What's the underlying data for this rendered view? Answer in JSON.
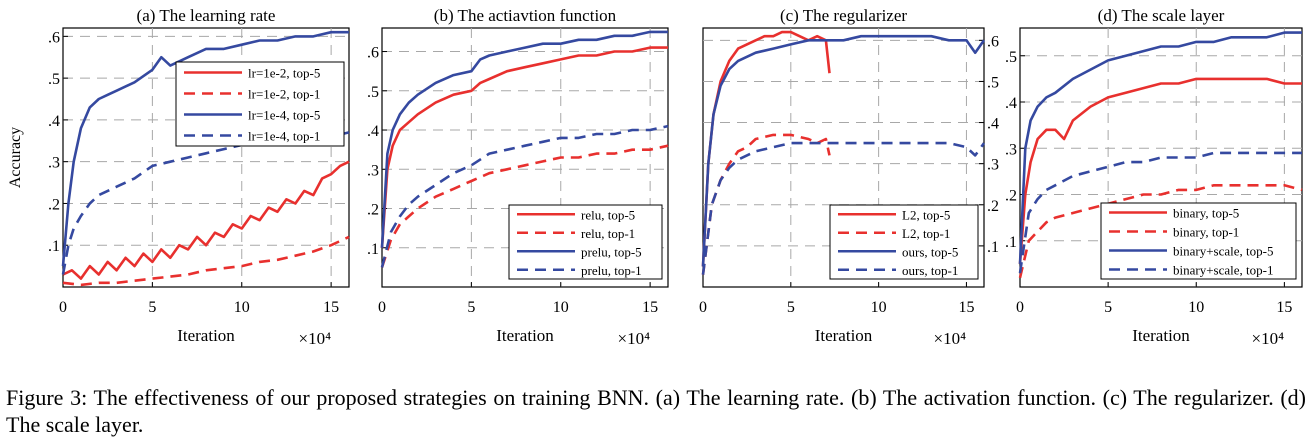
{
  "figure": {
    "caption": "Figure 3: The effectiveness of our proposed strategies on training BNN. (a) The learning rate. (b) The activation function. (c) The regularizer. (d) The scale layer."
  },
  "colors": {
    "red": "#e8302e",
    "blue": "#3549a0"
  },
  "chart_data": [
    {
      "type": "line",
      "title": "(a) The learning rate",
      "xlabel": "Iteration",
      "ylabel": "Accuracy",
      "xscale_label": "×10⁴",
      "xlim": [
        0,
        16
      ],
      "ylim": [
        0,
        0.62
      ],
      "xticks": [
        0,
        5,
        10,
        15
      ],
      "yticks": [
        0.1,
        0.2,
        0.3,
        0.4,
        0.5,
        0.6
      ],
      "ytick_side": "left",
      "grid": true,
      "legend_position": "top-right",
      "series": [
        {
          "name": "lr=1e-2, top-5",
          "color": "red",
          "dash": false,
          "x": [
            0,
            0.5,
            1,
            1.5,
            2,
            2.5,
            3,
            3.5,
            4,
            4.5,
            5,
            5.5,
            6,
            6.5,
            7,
            7.5,
            8,
            8.5,
            9,
            9.5,
            10,
            10.5,
            11,
            11.5,
            12,
            12.5,
            13,
            13.5,
            14,
            14.5,
            15,
            15.5,
            16
          ],
          "y": [
            0.03,
            0.04,
            0.02,
            0.05,
            0.03,
            0.06,
            0.04,
            0.07,
            0.05,
            0.08,
            0.06,
            0.09,
            0.07,
            0.1,
            0.09,
            0.12,
            0.1,
            0.13,
            0.12,
            0.15,
            0.14,
            0.17,
            0.16,
            0.19,
            0.18,
            0.21,
            0.2,
            0.23,
            0.22,
            0.26,
            0.27,
            0.29,
            0.3
          ]
        },
        {
          "name": "lr=1e-2, top-1",
          "color": "red",
          "dash": true,
          "x": [
            0,
            1,
            2,
            3,
            4,
            5,
            6,
            7,
            8,
            9,
            10,
            11,
            12,
            13,
            14,
            15,
            16
          ],
          "y": [
            0.01,
            0.005,
            0.01,
            0.01,
            0.015,
            0.02,
            0.025,
            0.03,
            0.04,
            0.045,
            0.05,
            0.06,
            0.065,
            0.075,
            0.085,
            0.1,
            0.12
          ]
        },
        {
          "name": "lr=1e-4, top-5",
          "color": "blue",
          "dash": false,
          "x": [
            0,
            0.3,
            0.6,
            1,
            1.5,
            2,
            2.5,
            3,
            4,
            5,
            5.5,
            6,
            7,
            8,
            9,
            10,
            11,
            12,
            13,
            14,
            15,
            16
          ],
          "y": [
            0.05,
            0.2,
            0.3,
            0.38,
            0.43,
            0.45,
            0.46,
            0.47,
            0.49,
            0.52,
            0.55,
            0.53,
            0.55,
            0.57,
            0.57,
            0.58,
            0.59,
            0.59,
            0.6,
            0.6,
            0.61,
            0.61
          ]
        },
        {
          "name": "lr=1e-4, top-1",
          "color": "blue",
          "dash": true,
          "x": [
            0,
            0.3,
            0.6,
            1,
            1.5,
            2,
            3,
            4,
            5,
            6,
            7,
            8,
            9,
            10,
            11,
            12,
            13,
            14,
            15,
            16
          ],
          "y": [
            0.03,
            0.1,
            0.14,
            0.17,
            0.2,
            0.22,
            0.24,
            0.26,
            0.29,
            0.3,
            0.31,
            0.32,
            0.33,
            0.34,
            0.34,
            0.35,
            0.35,
            0.36,
            0.36,
            0.37
          ]
        }
      ]
    },
    {
      "type": "line",
      "title": "(b) The actiavtion function",
      "xlabel": "Iteration",
      "xscale_label": "×10⁴",
      "xlim": [
        0,
        16
      ],
      "ylim": [
        0,
        0.66
      ],
      "xticks": [
        0,
        5,
        10,
        15
      ],
      "yticks": [
        0.1,
        0.2,
        0.3,
        0.4,
        0.5,
        0.6
      ],
      "ytick_side": "left",
      "grid": true,
      "legend_position": "bottom-right",
      "series": [
        {
          "name": "relu, top-5",
          "color": "red",
          "dash": false,
          "x": [
            0,
            0.3,
            0.6,
            1,
            1.5,
            2,
            3,
            4,
            5,
            5.5,
            6,
            7,
            8,
            9,
            10,
            11,
            12,
            13,
            14,
            15,
            16
          ],
          "y": [
            0.1,
            0.3,
            0.36,
            0.4,
            0.42,
            0.44,
            0.47,
            0.49,
            0.5,
            0.52,
            0.53,
            0.55,
            0.56,
            0.57,
            0.58,
            0.59,
            0.59,
            0.6,
            0.6,
            0.61,
            0.61
          ]
        },
        {
          "name": "relu, top-1",
          "color": "red",
          "dash": true,
          "x": [
            0,
            0.5,
            1,
            1.5,
            2,
            3,
            4,
            5,
            6,
            7,
            8,
            9,
            10,
            11,
            12,
            13,
            14,
            15,
            16
          ],
          "y": [
            0.05,
            0.12,
            0.16,
            0.18,
            0.2,
            0.23,
            0.25,
            0.27,
            0.29,
            0.3,
            0.31,
            0.32,
            0.33,
            0.33,
            0.34,
            0.34,
            0.35,
            0.35,
            0.36
          ]
        },
        {
          "name": "prelu, top-5",
          "color": "blue",
          "dash": false,
          "x": [
            0,
            0.3,
            0.6,
            1,
            1.5,
            2,
            3,
            4,
            5,
            5.5,
            6,
            7,
            8,
            9,
            10,
            11,
            12,
            13,
            14,
            15,
            16
          ],
          "y": [
            0.1,
            0.34,
            0.4,
            0.44,
            0.47,
            0.49,
            0.52,
            0.54,
            0.55,
            0.58,
            0.59,
            0.6,
            0.61,
            0.62,
            0.62,
            0.63,
            0.63,
            0.64,
            0.64,
            0.65,
            0.65
          ]
        },
        {
          "name": "prelu, top-1",
          "color": "blue",
          "dash": true,
          "x": [
            0,
            0.5,
            1,
            1.5,
            2,
            3,
            4,
            5,
            6,
            7,
            8,
            9,
            10,
            11,
            12,
            13,
            14,
            15,
            16
          ],
          "y": [
            0.05,
            0.14,
            0.18,
            0.21,
            0.23,
            0.26,
            0.29,
            0.31,
            0.34,
            0.35,
            0.36,
            0.37,
            0.38,
            0.38,
            0.39,
            0.39,
            0.4,
            0.4,
            0.41
          ]
        }
      ]
    },
    {
      "type": "line",
      "title": "(c) The regularizer",
      "xlabel": "Iteration",
      "xscale_label": "×10⁴",
      "xlim": [
        0,
        16
      ],
      "ylim": [
        0,
        0.63
      ],
      "xticks": [
        0,
        5,
        10,
        15
      ],
      "yticks": [
        0.1,
        0.2,
        0.3,
        0.4,
        0.5,
        0.6
      ],
      "ytick_side": "right",
      "grid": true,
      "legend_position": "bottom-right",
      "series": [
        {
          "name": "L2, top-5",
          "color": "red",
          "dash": false,
          "x": [
            0,
            0.3,
            0.6,
            1,
            1.5,
            2,
            2.5,
            3,
            3.5,
            4,
            4.5,
            5,
            5.5,
            6,
            6.5,
            7,
            7.2
          ],
          "y": [
            0.05,
            0.3,
            0.42,
            0.5,
            0.55,
            0.58,
            0.59,
            0.6,
            0.61,
            0.61,
            0.62,
            0.62,
            0.61,
            0.6,
            0.61,
            0.6,
            0.52
          ]
        },
        {
          "name": "L2, top-1",
          "color": "red",
          "dash": true,
          "x": [
            0,
            0.5,
            1,
            1.5,
            2,
            2.5,
            3,
            4,
            5,
            6,
            6.5,
            7,
            7.2
          ],
          "y": [
            0.03,
            0.2,
            0.26,
            0.3,
            0.33,
            0.34,
            0.36,
            0.37,
            0.37,
            0.36,
            0.35,
            0.36,
            0.32
          ]
        },
        {
          "name": "ours, top-5",
          "color": "blue",
          "dash": false,
          "x": [
            0,
            0.3,
            0.6,
            1,
            1.5,
            2,
            3,
            4,
            5,
            6,
            7,
            8,
            9,
            10,
            11,
            12,
            13,
            14,
            15,
            15.5,
            16
          ],
          "y": [
            0.05,
            0.3,
            0.42,
            0.49,
            0.53,
            0.55,
            0.57,
            0.58,
            0.59,
            0.6,
            0.6,
            0.6,
            0.61,
            0.61,
            0.61,
            0.61,
            0.61,
            0.6,
            0.6,
            0.57,
            0.6
          ]
        },
        {
          "name": "ours, top-1",
          "color": "blue",
          "dash": true,
          "x": [
            0,
            0.5,
            1,
            1.5,
            2,
            3,
            4,
            5,
            6,
            7,
            8,
            9,
            10,
            11,
            12,
            13,
            14,
            15,
            15.5,
            16
          ],
          "y": [
            0.03,
            0.2,
            0.26,
            0.29,
            0.31,
            0.33,
            0.34,
            0.35,
            0.35,
            0.35,
            0.35,
            0.35,
            0.35,
            0.35,
            0.35,
            0.35,
            0.35,
            0.34,
            0.32,
            0.35
          ]
        }
      ]
    },
    {
      "type": "line",
      "title": "(d) The scale layer",
      "xlabel": "Iteration",
      "xscale_label": "×10⁴",
      "xlim": [
        0,
        16
      ],
      "ylim": [
        0,
        0.56
      ],
      "xticks": [
        0,
        5,
        10,
        15
      ],
      "yticks": [
        0.1,
        0.2,
        0.3,
        0.4,
        0.5
      ],
      "ytick_side": "left",
      "grid": true,
      "legend_position": "bottom-right",
      "series": [
        {
          "name": "binary, top-5",
          "color": "red",
          "dash": false,
          "x": [
            0,
            0.3,
            0.6,
            1,
            1.5,
            2,
            2.5,
            3,
            4,
            5,
            6,
            7,
            8,
            9,
            10,
            11,
            12,
            13,
            14,
            15,
            16
          ],
          "y": [
            0.05,
            0.2,
            0.27,
            0.32,
            0.34,
            0.34,
            0.32,
            0.36,
            0.39,
            0.41,
            0.42,
            0.43,
            0.44,
            0.44,
            0.45,
            0.45,
            0.45,
            0.45,
            0.45,
            0.44,
            0.44
          ]
        },
        {
          "name": "binary, top-1",
          "color": "red",
          "dash": true,
          "x": [
            0,
            0.5,
            1,
            1.5,
            2,
            3,
            4,
            5,
            6,
            7,
            8,
            9,
            10,
            11,
            12,
            13,
            14,
            15,
            16
          ],
          "y": [
            0.02,
            0.1,
            0.12,
            0.14,
            0.15,
            0.16,
            0.17,
            0.18,
            0.19,
            0.2,
            0.2,
            0.21,
            0.21,
            0.22,
            0.22,
            0.22,
            0.22,
            0.22,
            0.21
          ]
        },
        {
          "name": "binary+scale, top-5",
          "color": "blue",
          "dash": false,
          "x": [
            0,
            0.3,
            0.6,
            1,
            1.5,
            2,
            3,
            4,
            5,
            6,
            7,
            8,
            9,
            10,
            11,
            12,
            13,
            14,
            15,
            16
          ],
          "y": [
            0.05,
            0.3,
            0.36,
            0.39,
            0.41,
            0.42,
            0.45,
            0.47,
            0.49,
            0.5,
            0.51,
            0.52,
            0.52,
            0.53,
            0.53,
            0.54,
            0.54,
            0.54,
            0.55,
            0.55
          ]
        },
        {
          "name": "binary+scale, top-1",
          "color": "blue",
          "dash": true,
          "x": [
            0,
            0.5,
            1,
            1.5,
            2,
            3,
            4,
            5,
            6,
            7,
            8,
            9,
            10,
            11,
            12,
            13,
            14,
            15,
            16
          ],
          "y": [
            0.03,
            0.16,
            0.19,
            0.21,
            0.22,
            0.24,
            0.25,
            0.26,
            0.27,
            0.27,
            0.28,
            0.28,
            0.28,
            0.29,
            0.29,
            0.29,
            0.29,
            0.29,
            0.29
          ]
        }
      ]
    }
  ]
}
